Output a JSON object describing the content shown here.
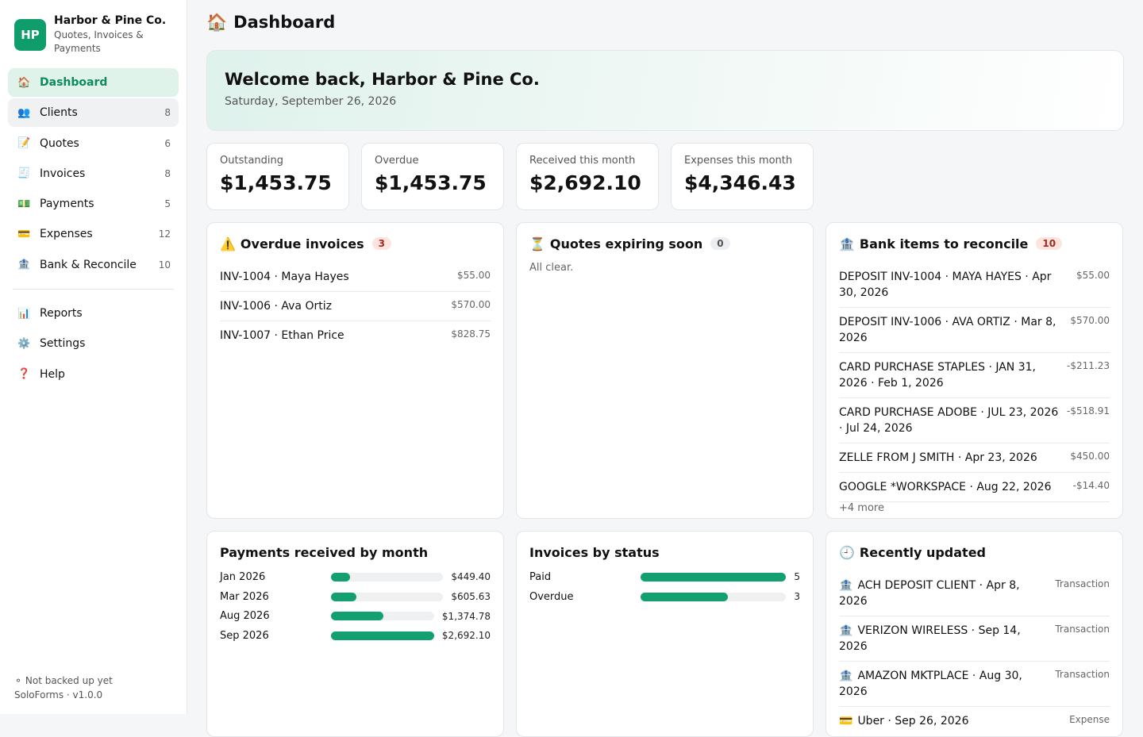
{
  "brand": {
    "logo": "HP",
    "name": "Harbor & Pine Co.",
    "tagline": "Quotes, Invoices & Payments"
  },
  "nav": [
    {
      "icon": "🏠",
      "label": "Dashboard",
      "count": null
    },
    {
      "icon": "👥",
      "label": "Clients",
      "count": 8
    },
    {
      "icon": "📝",
      "label": "Quotes",
      "count": 6
    },
    {
      "icon": "🧾",
      "label": "Invoices",
      "count": 8
    },
    {
      "icon": "💵",
      "label": "Payments",
      "count": 5
    },
    {
      "icon": "💳",
      "label": "Expenses",
      "count": 12
    },
    {
      "icon": "🏦",
      "label": "Bank & Reconcile",
      "count": 10
    }
  ],
  "nav_secondary": [
    {
      "icon": "📊",
      "label": "Reports"
    },
    {
      "icon": "⚙️",
      "label": "Settings"
    },
    {
      "icon": "❓",
      "label": "Help"
    }
  ],
  "footer": {
    "status": "⚬ Not backed up yet",
    "version": "SoloForms · v1.0.0"
  },
  "header": {
    "icon": "🏠",
    "title": "Dashboard"
  },
  "welcome": {
    "title": "Welcome back, Harbor & Pine Co.",
    "date": "Saturday, September 26, 2026"
  },
  "stats": [
    {
      "label": "Outstanding",
      "value": "$1,453.75"
    },
    {
      "label": "Overdue",
      "value": "$1,453.75"
    },
    {
      "label": "Received this month",
      "value": "$2,692.10"
    },
    {
      "label": "Expenses this month",
      "value": "$4,346.43"
    }
  ],
  "overdue": {
    "icon": "⚠️",
    "title": "Overdue invoices",
    "badge": 3,
    "items": [
      {
        "text": "INV-1004 · Maya Hayes",
        "amount": "$55.00"
      },
      {
        "text": "INV-1006 · Ava Ortiz",
        "amount": "$570.00"
      },
      {
        "text": "INV-1007 · Ethan Price",
        "amount": "$828.75"
      }
    ]
  },
  "quotes": {
    "icon": "⏳",
    "title": "Quotes expiring soon",
    "badge": 0,
    "empty": "All clear."
  },
  "bank": {
    "icon": "🏦",
    "title": "Bank items to reconcile",
    "badge": 10,
    "items": [
      {
        "text": "DEPOSIT INV-1004 · MAYA HAYES · Apr 30, 2026",
        "amount": "$55.00"
      },
      {
        "text": "DEPOSIT INV-1006 · AVA ORTIZ · Mar 8, 2026",
        "amount": "$570.00"
      },
      {
        "text": "CARD PURCHASE STAPLES · JAN 31, 2026 · Feb 1, 2026",
        "amount": "-$211.23"
      },
      {
        "text": "CARD PURCHASE ADOBE · JUL 23, 2026 · Jul 24, 2026",
        "amount": "-$518.91"
      },
      {
        "text": "ZELLE FROM J SMITH · Apr 23, 2026",
        "amount": "$450.00"
      },
      {
        "text": "GOOGLE *WORKSPACE · Aug 22, 2026",
        "amount": "-$14.40"
      }
    ],
    "more": "+4 more"
  },
  "payments_chart": {
    "title": "Payments received by month",
    "rows": [
      {
        "label": "Jan 2026",
        "value": 449.4,
        "value_label": "$449.40"
      },
      {
        "label": "Mar 2026",
        "value": 605.63,
        "value_label": "$605.63"
      },
      {
        "label": "Aug 2026",
        "value": 1374.78,
        "value_label": "$1,374.78"
      },
      {
        "label": "Sep 2026",
        "value": 2692.1,
        "value_label": "$2,692.10"
      }
    ]
  },
  "status_chart": {
    "title": "Invoices by status",
    "rows": [
      {
        "label": "Paid",
        "value": 5
      },
      {
        "label": "Overdue",
        "value": 3
      }
    ]
  },
  "recent": {
    "icon": "🕘",
    "title": "Recently updated",
    "items": [
      {
        "icon": "🏦",
        "text": "ACH DEPOSIT CLIENT · Apr 8, 2026",
        "kind": "Transaction"
      },
      {
        "icon": "🏦",
        "text": "VERIZON WIRELESS · Sep 14, 2026",
        "kind": "Transaction"
      },
      {
        "icon": "🏦",
        "text": "AMAZON MKTPLACE · Aug 30, 2026",
        "kind": "Transaction"
      },
      {
        "icon": "💳",
        "text": "Uber · Sep 26, 2026",
        "kind": "Expense"
      }
    ]
  }
}
